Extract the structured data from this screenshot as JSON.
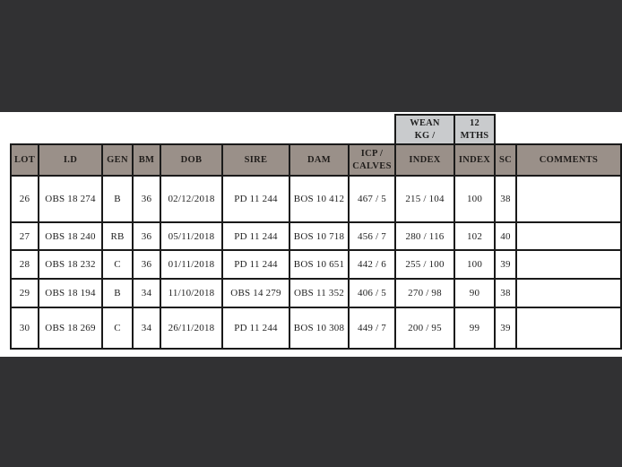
{
  "colors": {
    "letterbox": "#313133",
    "page_bg": "#ffffff",
    "table_header_bg": "#9a9089",
    "super_header_bg": "#c9cbcd",
    "border": "#1a1a1a",
    "text": "#1f1f1f"
  },
  "table": {
    "super_headers": [
      {
        "name": "wean-kg-super-header",
        "column_index": 8,
        "lines": [
          "WEAN",
          "KG /"
        ]
      },
      {
        "name": "12-mths-super-header",
        "column_index": 9,
        "lines": [
          "12",
          "MTHS"
        ]
      }
    ],
    "columns": [
      {
        "id": "lot",
        "lines": [
          "LOT"
        ]
      },
      {
        "id": "id",
        "lines": [
          "I.D"
        ]
      },
      {
        "id": "gen",
        "lines": [
          "GEN"
        ]
      },
      {
        "id": "bm",
        "lines": [
          "BM"
        ]
      },
      {
        "id": "dob",
        "lines": [
          "DOB"
        ]
      },
      {
        "id": "sire",
        "lines": [
          "SIRE"
        ]
      },
      {
        "id": "dam",
        "lines": [
          "DAM"
        ]
      },
      {
        "id": "icp-calves",
        "lines": [
          "ICP /",
          "CALVES"
        ]
      },
      {
        "id": "index-wean",
        "lines": [
          "INDEX"
        ]
      },
      {
        "id": "index-12mths",
        "lines": [
          "INDEX"
        ]
      },
      {
        "id": "sc",
        "lines": [
          "SC"
        ]
      },
      {
        "id": "comments",
        "lines": [
          "COMMENTS"
        ]
      }
    ],
    "rows": [
      [
        "26",
        "OBS 18 274",
        "B",
        "36",
        "02/12/2018",
        "PD 11 244",
        "BOS 10 412",
        "467 / 5",
        "215 / 104",
        "100",
        "38",
        ""
      ],
      [
        "27",
        "OBS 18 240",
        "RB",
        "36",
        "05/11/2018",
        "PD 11 244",
        "BOS 10 718",
        "456 / 7",
        "280 / 116",
        "102",
        "40",
        ""
      ],
      [
        "28",
        "OBS 18 232",
        "C",
        "36",
        "01/11/2018",
        "PD 11 244",
        "BOS 10 651",
        "442 / 6",
        "255 / 100",
        "100",
        "39",
        ""
      ],
      [
        "29",
        "OBS 18 194",
        "B",
        "34",
        "11/10/2018",
        "OBS 14 279",
        "OBS 11 352",
        "406 / 5",
        "270 / 98",
        "90",
        "38",
        ""
      ],
      [
        "30",
        "OBS 18 269",
        "C",
        "34",
        "26/11/2018",
        "PD 11 244",
        "BOS 10 308",
        "449 / 7",
        "200 / 95",
        "99",
        "39",
        ""
      ]
    ]
  }
}
